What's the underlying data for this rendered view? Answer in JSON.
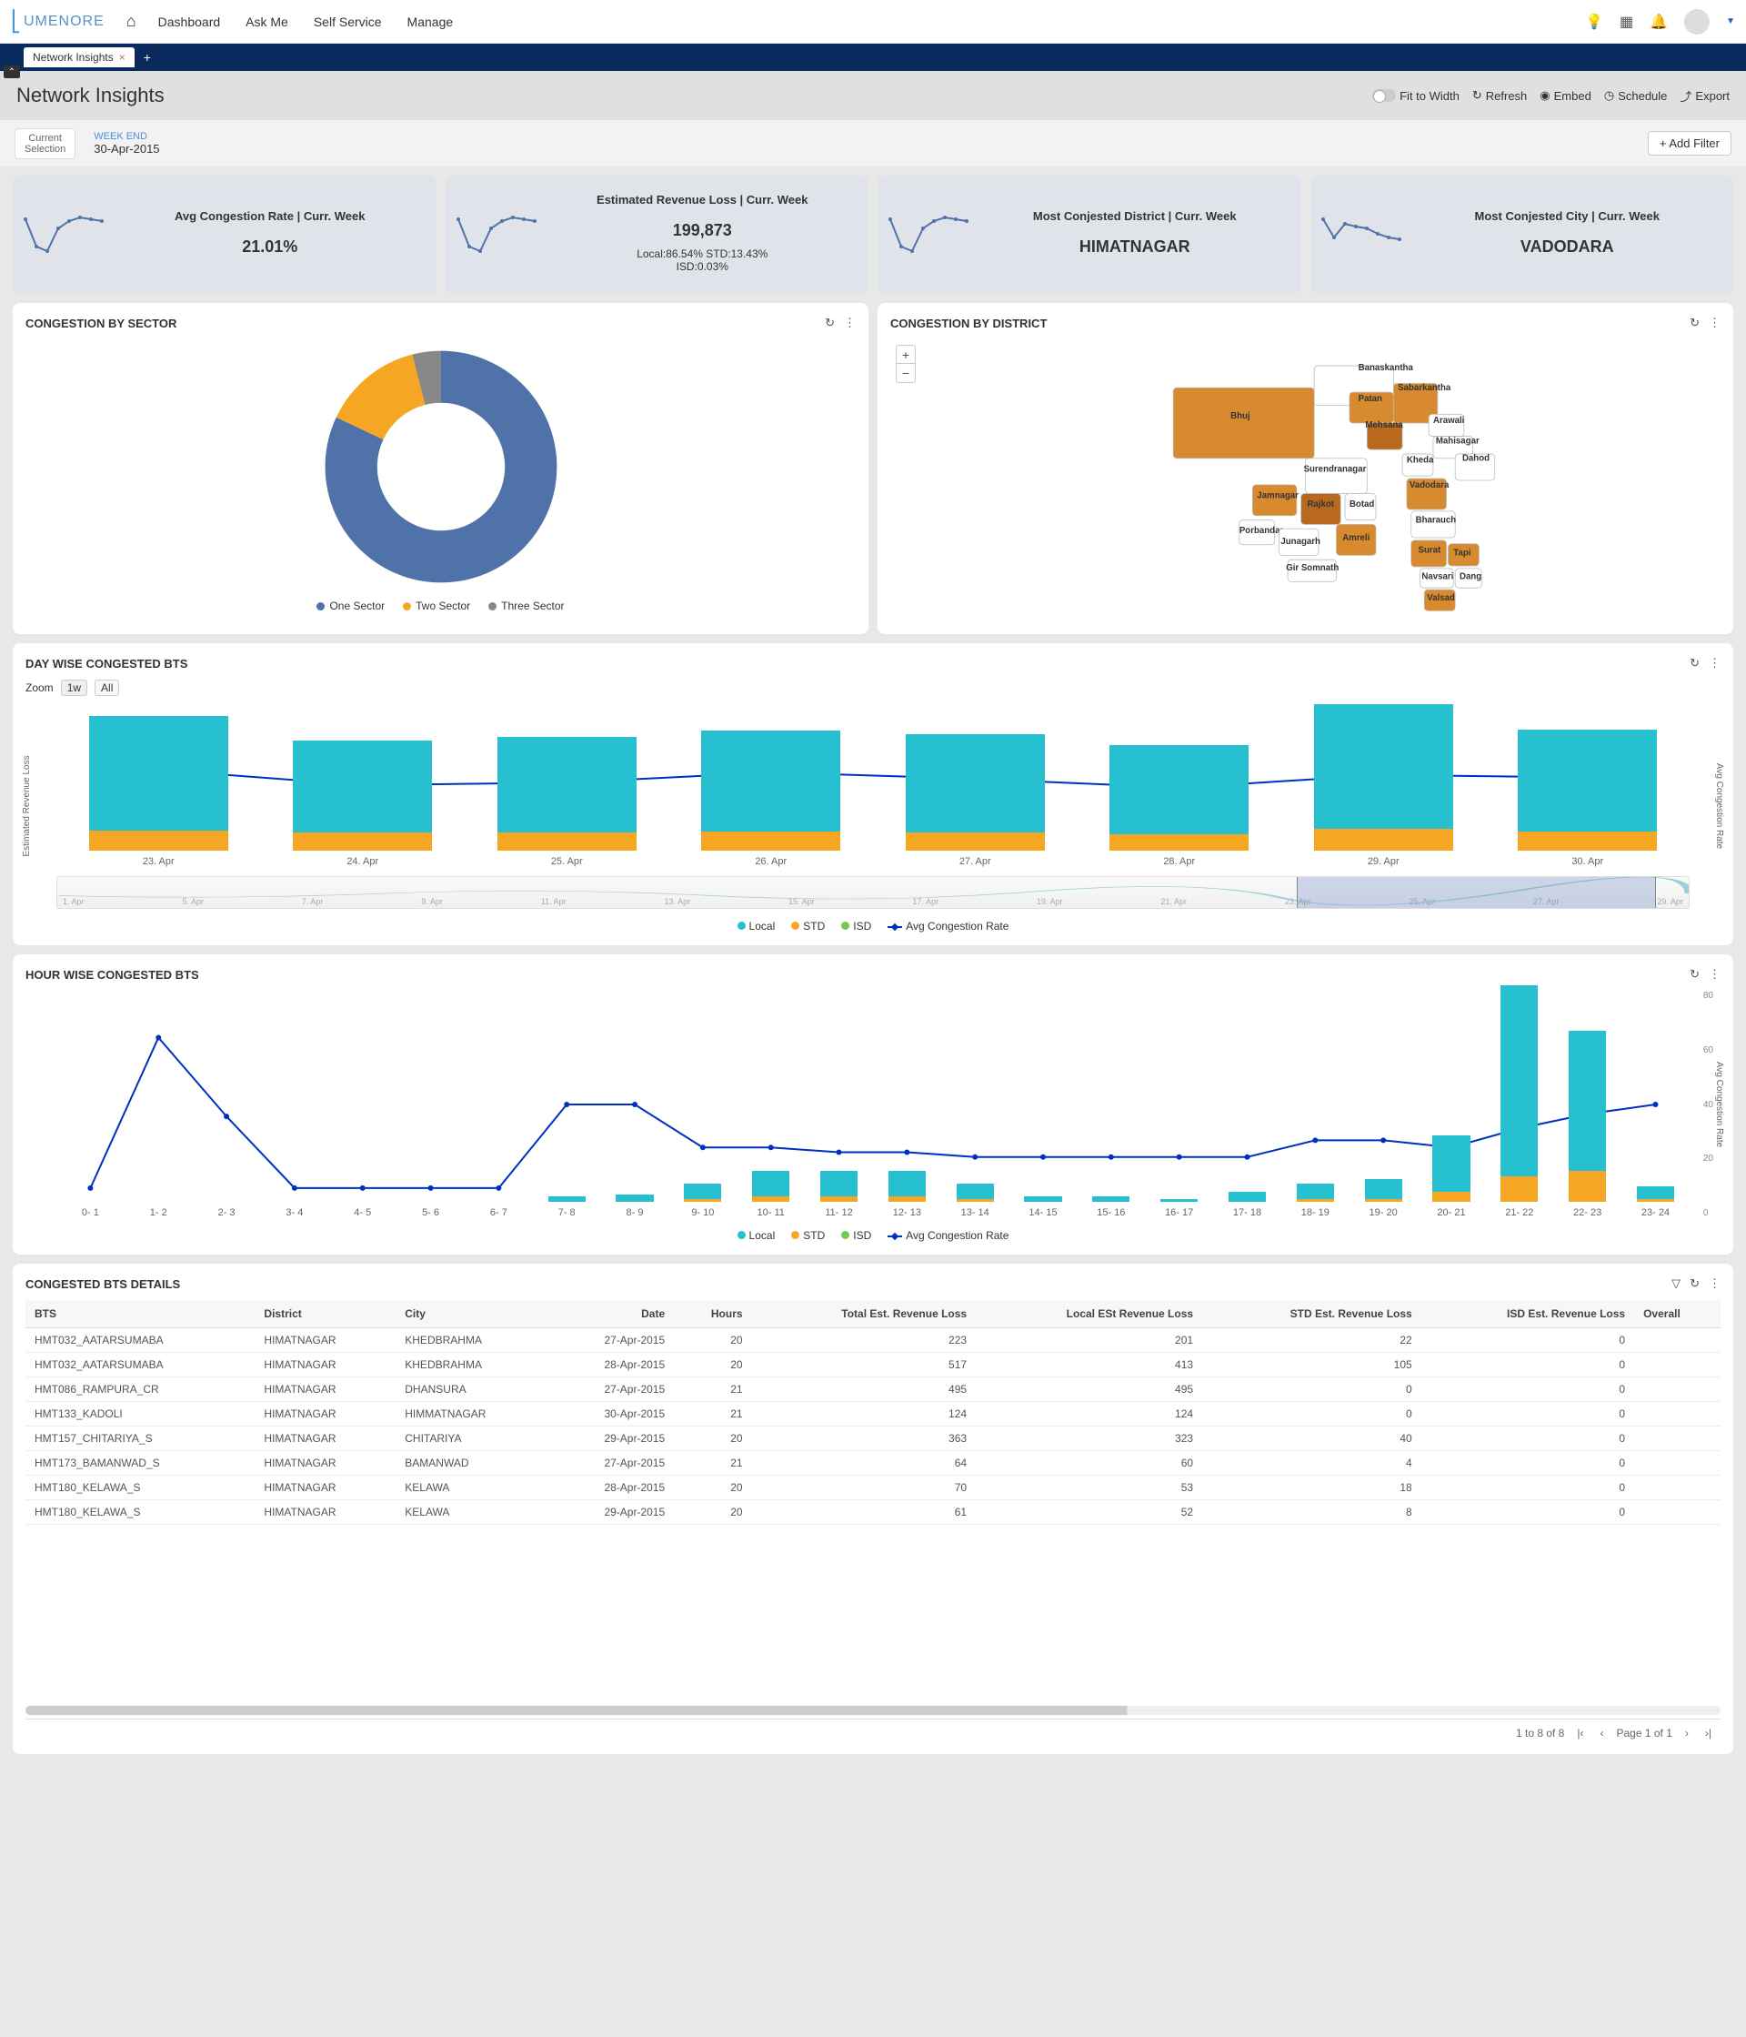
{
  "brand": "UMENORE",
  "nav": {
    "links": [
      "Dashboard",
      "Ask Me",
      "Self Service",
      "Manage"
    ]
  },
  "tab": {
    "name": "Network Insights"
  },
  "page": {
    "title": "Network Insights"
  },
  "header_actions": {
    "fit": "Fit to Width",
    "refresh": "Refresh",
    "embed": "Embed",
    "schedule": "Schedule",
    "export": "Export"
  },
  "filter": {
    "current": "Current\nSelection",
    "label": "WEEK END",
    "value": "30-Apr-2015",
    "add": "+ Add Filter"
  },
  "colors": {
    "teal": "#26c0d1",
    "orange": "#f5a623",
    "green": "#7ac74f",
    "line": "#0030c0",
    "kpi_bg": "#e0e4ea",
    "blue": "#4f73a8",
    "grey": "#888"
  },
  "kpi": [
    {
      "title": "Avg Congestion Rate | Curr. Week",
      "value": "21.01%",
      "spark": [
        40,
        10,
        5,
        30,
        38,
        42,
        40,
        38
      ]
    },
    {
      "title": "Estimated Revenue Loss | Curr. Week",
      "value": "199,873",
      "sub": "Local:86.54%    STD:13.43%\nISD:0.03%",
      "spark": [
        40,
        10,
        5,
        30,
        38,
        42,
        40,
        38
      ]
    },
    {
      "title": "Most Conjested District | Curr. Week",
      "value": "HIMATNAGAR",
      "spark": [
        40,
        10,
        5,
        30,
        38,
        42,
        40,
        38
      ]
    },
    {
      "title": "Most Conjested City | Curr. Week",
      "value": "VADODARA",
      "spark": [
        40,
        20,
        35,
        32,
        30,
        24,
        20,
        18
      ]
    }
  ],
  "donut": {
    "title": "CONGESTION BY SECTOR",
    "slices": [
      {
        "label": "One Sector",
        "value": 82,
        "color": "#4f73a8"
      },
      {
        "label": "Two Sector",
        "value": 14,
        "color": "#f5a623"
      },
      {
        "label": "Three Sector",
        "value": 4,
        "color": "#888"
      }
    ]
  },
  "map": {
    "title": "CONGESTION BY DISTRICT",
    "districts": [
      "Banaskantha",
      "Bhuj",
      "Patan",
      "Sabarkantha",
      "Mehsana",
      "Arawali",
      "Mahisagar",
      "Kheda",
      "Dahod",
      "Surendranagar",
      "Vadodara",
      "Jamnagar",
      "Rajkot",
      "Botad",
      "Bharauch",
      "Porbandar",
      "Amreli",
      "Junagarh",
      "Gir Somnath",
      "Surat",
      "Tapi",
      "Navsari",
      "Dang",
      "Valsad"
    ]
  },
  "daywise": {
    "title": "DAY WISE CONGESTED BTS",
    "zoom_label": "Zoom",
    "zoom_1w": "1w",
    "zoom_all": "All",
    "y_left_label": "Estimated Revenue Loss",
    "y_right_label": "Avg Congestion Rate",
    "y_right_ticks": [
      "30",
      "20"
    ],
    "days": [
      {
        "x": "23. Apr",
        "local": 180,
        "std": 32,
        "line": 62
      },
      {
        "x": "24. Apr",
        "local": 145,
        "std": 28,
        "line": 50
      },
      {
        "x": "25. Apr",
        "local": 150,
        "std": 28,
        "line": 52
      },
      {
        "x": "26. Apr",
        "local": 158,
        "std": 30,
        "line": 60
      },
      {
        "x": "27. Apr",
        "local": 155,
        "std": 28,
        "line": 55
      },
      {
        "x": "28. Apr",
        "local": 140,
        "std": 26,
        "line": 48
      },
      {
        "x": "29. Apr",
        "local": 195,
        "std": 35,
        "line": 58
      },
      {
        "x": "30. Apr",
        "local": 160,
        "std": 30,
        "line": 56
      }
    ],
    "nav_ticks": [
      "1. Apr",
      "5. Apr",
      "7. Apr",
      "9. Apr",
      "11. Apr",
      "13. Apr",
      "15. Apr",
      "17. Apr",
      "19. Apr",
      "21. Apr",
      "23. Apr",
      "25. Apr",
      "27. Apr",
      "29. Apr"
    ],
    "legend": [
      "Local",
      "STD",
      "ISD",
      "Avg Congestion Rate"
    ]
  },
  "hourwise": {
    "title": "HOUR WISE CONGESTED BTS",
    "y_right_label": "Avg Congestion Rate",
    "y_right_ticks": [
      "80",
      "60",
      "40",
      "20",
      "0"
    ],
    "hours": [
      {
        "x": "0- 1",
        "local": 0,
        "std": 0,
        "line": 5
      },
      {
        "x": "1- 2",
        "local": 0,
        "std": 0,
        "line": 68
      },
      {
        "x": "2- 3",
        "local": 0,
        "std": 0,
        "line": 35
      },
      {
        "x": "3- 4",
        "local": 0,
        "std": 0,
        "line": 5
      },
      {
        "x": "4- 5",
        "local": 0,
        "std": 0,
        "line": 5
      },
      {
        "x": "5- 6",
        "local": 0,
        "std": 0,
        "line": 5
      },
      {
        "x": "6- 7",
        "local": 0,
        "std": 0,
        "line": 5
      },
      {
        "x": "7- 8",
        "local": 2,
        "std": 0,
        "line": 40
      },
      {
        "x": "8- 9",
        "local": 3,
        "std": 0,
        "line": 40
      },
      {
        "x": "9- 10",
        "local": 6,
        "std": 1,
        "line": 22
      },
      {
        "x": "10- 11",
        "local": 10,
        "std": 2,
        "line": 22
      },
      {
        "x": "11- 12",
        "local": 10,
        "std": 2,
        "line": 20
      },
      {
        "x": "12- 13",
        "local": 10,
        "std": 2,
        "line": 20
      },
      {
        "x": "13- 14",
        "local": 6,
        "std": 1,
        "line": 18
      },
      {
        "x": "14- 15",
        "local": 2,
        "std": 0,
        "line": 18
      },
      {
        "x": "15- 16",
        "local": 2,
        "std": 0,
        "line": 18
      },
      {
        "x": "16- 17",
        "local": 1,
        "std": 0,
        "line": 18
      },
      {
        "x": "17- 18",
        "local": 4,
        "std": 0,
        "line": 18
      },
      {
        "x": "18- 19",
        "local": 6,
        "std": 1,
        "line": 25
      },
      {
        "x": "19- 20",
        "local": 8,
        "std": 1,
        "line": 25
      },
      {
        "x": "20- 21",
        "local": 22,
        "std": 4,
        "line": 22
      },
      {
        "x": "21- 22",
        "local": 75,
        "std": 10,
        "line": 30
      },
      {
        "x": "22- 23",
        "local": 55,
        "std": 12,
        "line": 36
      },
      {
        "x": "23- 24",
        "local": 5,
        "std": 1,
        "line": 40
      }
    ],
    "legend": [
      "Local",
      "STD",
      "ISD",
      "Avg Congestion Rate"
    ]
  },
  "table": {
    "title": "CONGESTED BTS DETAILS",
    "columns": [
      "BTS",
      "District",
      "City",
      "Date",
      "Hours",
      "Total Est. Revenue Loss",
      "Local ESt Revenue Loss",
      "STD Est. Revenue Loss",
      "ISD Est. Revenue Loss",
      "Overall"
    ],
    "rows": [
      [
        "HMT032_AATARSUMABA",
        "HIMATNAGAR",
        "KHEDBRAHMA",
        "27-Apr-2015",
        "20",
        "223",
        "201",
        "22",
        "0",
        ""
      ],
      [
        "HMT032_AATARSUMABA",
        "HIMATNAGAR",
        "KHEDBRAHMA",
        "28-Apr-2015",
        "20",
        "517",
        "413",
        "105",
        "0",
        ""
      ],
      [
        "HMT086_RAMPURA_CR",
        "HIMATNAGAR",
        "DHANSURA",
        "27-Apr-2015",
        "21",
        "495",
        "495",
        "0",
        "0",
        ""
      ],
      [
        "HMT133_KADOLI",
        "HIMATNAGAR",
        "HIMMATNAGAR",
        "30-Apr-2015",
        "21",
        "124",
        "124",
        "0",
        "0",
        ""
      ],
      [
        "HMT157_CHITARIYA_S",
        "HIMATNAGAR",
        "CHITARIYA",
        "29-Apr-2015",
        "20",
        "363",
        "323",
        "40",
        "0",
        ""
      ],
      [
        "HMT173_BAMANWAD_S",
        "HIMATNAGAR",
        "BAMANWAD",
        "27-Apr-2015",
        "21",
        "64",
        "60",
        "4",
        "0",
        ""
      ],
      [
        "HMT180_KELAWA_S",
        "HIMATNAGAR",
        "KELAWA",
        "28-Apr-2015",
        "20",
        "70",
        "53",
        "18",
        "0",
        ""
      ],
      [
        "HMT180_KELAWA_S",
        "HIMATNAGAR",
        "KELAWA",
        "29-Apr-2015",
        "20",
        "61",
        "52",
        "8",
        "0",
        ""
      ]
    ],
    "pagination": {
      "summary": "1 to 8 of 8",
      "page": "Page 1 of 1"
    }
  }
}
